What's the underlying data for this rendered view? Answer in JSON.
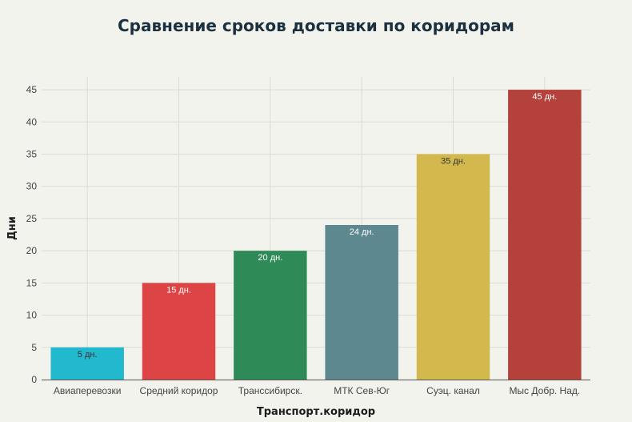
{
  "chart_data": {
    "type": "bar",
    "title": "Сравнение сроков доставки по коридорам",
    "xlabel": "Транспорт.коридор",
    "ylabel": "Дни",
    "categories": [
      "Авиаперевозки",
      "Средний коридор",
      "Транссибирск.",
      "МТК Сев-Юг",
      "Суэц. канал",
      "Мыс Добр. Над."
    ],
    "values": [
      5,
      15,
      20,
      24,
      35,
      45
    ],
    "data_labels": [
      "5 дн.",
      "15 дн.",
      "20 дн.",
      "24 дн.",
      "35 дн.",
      "45 дн."
    ],
    "colors": [
      "#22b9cf",
      "#dc4446",
      "#2e8b57",
      "#5e888f",
      "#d3b94d",
      "#b5413b"
    ],
    "label_colors": [
      "#333333",
      "#ffffff",
      "#ffffff",
      "#ffffff",
      "#333333",
      "#ffffff"
    ],
    "ylim": [
      0,
      47
    ],
    "yticks": [
      0,
      5,
      10,
      15,
      20,
      25,
      30,
      35,
      40,
      45
    ],
    "grid": true
  }
}
